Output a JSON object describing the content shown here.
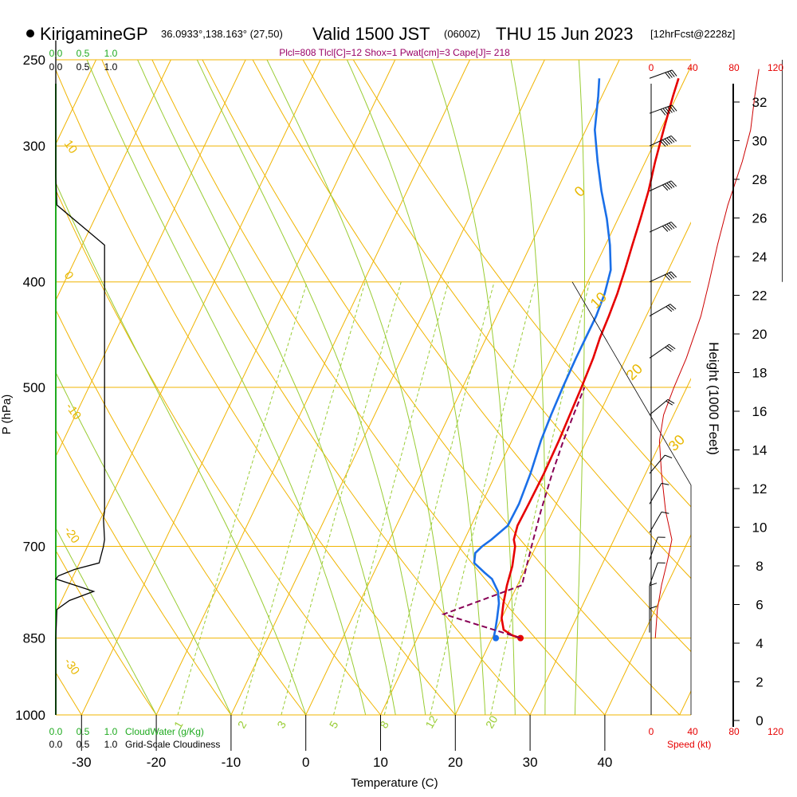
{
  "header": {
    "station": "KirigamineGP",
    "coords": "36.0933°,138.163° (27,50)",
    "valid": "Valid 1500 JST",
    "zulu": "(0600Z)",
    "date": "THU 15 Jun 2023",
    "forecast": "[12hrFcst@2228z]"
  },
  "indices": "Plcl=808 Tlcl[C]=12 Shox=1 Pwat[cm]=3 Cape[J]= 218",
  "colors": {
    "temperature": "#e60000",
    "dewpoint": "#1a6fe8",
    "parcel": "#880055",
    "isobar": "#f0b400",
    "dry_adiabat": "#f0b400",
    "isotherm": "#f0b400",
    "moist_adiabat": "#99cc33",
    "mixing_ratio": "#99cc33",
    "cloud_water": "#1faa1f",
    "cloudiness": "#000000",
    "wind_speed": "#cc0000"
  },
  "chart_data": {
    "type": "line",
    "subtype": "skew-T log-P sounding",
    "xlabel": "Temperature (C)",
    "ylabel": "P (hPa)",
    "right_label": "Height (1000 Feet)",
    "x_ticks": [
      "-30",
      "-20",
      "-10",
      "0",
      "10",
      "20",
      "30",
      "40"
    ],
    "x_tick_values": [
      -30,
      -20,
      -10,
      0,
      10,
      20,
      30,
      40
    ],
    "p_ticks": [
      "250",
      "300",
      "400",
      "500",
      "700",
      "850",
      "1000"
    ],
    "p_tick_values": [
      250,
      300,
      400,
      500,
      700,
      850,
      1000
    ],
    "height_ticks": [
      "0",
      "2",
      "4",
      "6",
      "8",
      "10",
      "12",
      "14",
      "16",
      "18",
      "20",
      "22",
      "24",
      "26",
      "28",
      "30",
      "32"
    ],
    "height_tick_values": [
      0,
      2,
      4,
      6,
      8,
      10,
      12,
      14,
      16,
      18,
      20,
      22,
      24,
      26,
      28,
      30,
      32
    ],
    "cloud_scale_labels": [
      "0.0",
      "0.5",
      "1.0"
    ],
    "cloud_water_label": "CloudWater (g/Kg)",
    "cloudiness_label": "Grid-Scale Cloudiness",
    "speed_ticks": [
      "0",
      "40",
      "80",
      "120"
    ],
    "speed_tick_values": [
      0,
      40,
      80,
      120
    ],
    "speed_label": "Speed (kt)",
    "dry_adiabat_labels": [
      "10",
      "0",
      "-10",
      "-20",
      "-30"
    ],
    "isotherm_labels": [
      "0",
      "10",
      "20",
      "30"
    ],
    "mixing_ratio_labels": [
      "1",
      "2",
      "3",
      "5",
      "8",
      "12",
      "20"
    ],
    "mixing_ratio_values": [
      1,
      2,
      3,
      5,
      8,
      12,
      20
    ],
    "series": [
      {
        "name": "Temperature",
        "points": [
          [
            850,
            23.8
          ],
          [
            845,
            22.5
          ],
          [
            835,
            21.0
          ],
          [
            815,
            20.0
          ],
          [
            790,
            19.3
          ],
          [
            760,
            18.6
          ],
          [
            730,
            18.1
          ],
          [
            700,
            17.2
          ],
          [
            690,
            16.6
          ],
          [
            670,
            16.2
          ],
          [
            640,
            16.3
          ],
          [
            600,
            16.4
          ],
          [
            560,
            16.3
          ],
          [
            530,
            16.1
          ],
          [
            500,
            15.9
          ],
          [
            470,
            15.6
          ],
          [
            450,
            15.2
          ],
          [
            430,
            15.0
          ],
          [
            410,
            14.7
          ],
          [
            390,
            14.2
          ],
          [
            370,
            13.6
          ],
          [
            350,
            13.0
          ],
          [
            330,
            12.3
          ],
          [
            310,
            11.3
          ],
          [
            290,
            10.4
          ],
          [
            270,
            9.5
          ],
          [
            260,
            9.1
          ]
        ]
      },
      {
        "name": "Dewpoint",
        "points": [
          [
            850,
            20.5
          ],
          [
            845,
            20.1
          ],
          [
            835,
            19.9
          ],
          [
            815,
            19.4
          ],
          [
            790,
            18.7
          ],
          [
            770,
            17.8
          ],
          [
            750,
            16.2
          ],
          [
            740,
            14.8
          ],
          [
            725,
            12.8
          ],
          [
            710,
            12.3
          ],
          [
            700,
            12.8
          ],
          [
            690,
            13.6
          ],
          [
            670,
            14.9
          ],
          [
            640,
            15.0
          ],
          [
            600,
            14.6
          ],
          [
            560,
            13.9
          ],
          [
            530,
            13.6
          ],
          [
            500,
            13.4
          ],
          [
            470,
            13.3
          ],
          [
            450,
            13.3
          ],
          [
            430,
            13.3
          ],
          [
            410,
            13.0
          ],
          [
            390,
            12.3
          ],
          [
            370,
            10.6
          ],
          [
            350,
            8.5
          ],
          [
            330,
            6.0
          ],
          [
            310,
            3.6
          ],
          [
            290,
            1.2
          ],
          [
            270,
            -0.5
          ],
          [
            260,
            -1.5
          ]
        ]
      },
      {
        "name": "Parcel",
        "points": [
          [
            850,
            23.8
          ],
          [
            808,
            12.0
          ],
          [
            760,
            20.6
          ],
          [
            700,
            19.4
          ],
          [
            650,
            18.4
          ],
          [
            600,
            17.5
          ],
          [
            560,
            16.9
          ],
          [
            530,
            16.6
          ],
          [
            500,
            16.3
          ]
        ]
      }
    ],
    "cloudiness_profile": [
      [
        240,
        0.0
      ],
      [
        320,
        0.0
      ],
      [
        340,
        0.02
      ],
      [
        370,
        0.9
      ],
      [
        650,
        0.9
      ],
      [
        660,
        0.88
      ],
      [
        690,
        0.9
      ],
      [
        700,
        0.88
      ],
      [
        725,
        0.8
      ],
      [
        735,
        0.35
      ],
      [
        745,
        0.05
      ],
      [
        750,
        0.0
      ],
      [
        770,
        0.7
      ],
      [
        785,
        0.25
      ],
      [
        800,
        0.02
      ],
      [
        850,
        0.0
      ],
      [
        1000,
        0.0
      ]
    ],
    "wind_speed_profile": [
      [
        850,
        4
      ],
      [
        800,
        6
      ],
      [
        760,
        10
      ],
      [
        720,
        16
      ],
      [
        690,
        20
      ],
      [
        650,
        14
      ],
      [
        600,
        10
      ],
      [
        560,
        8
      ],
      [
        530,
        12
      ],
      [
        500,
        22
      ],
      [
        470,
        34
      ],
      [
        430,
        48
      ],
      [
        400,
        56
      ],
      [
        370,
        64
      ],
      [
        340,
        74
      ],
      [
        310,
        88
      ],
      [
        290,
        96
      ],
      [
        270,
        100
      ],
      [
        255,
        104
      ]
    ],
    "wind_barbs": [
      {
        "p": 260,
        "speed": 40,
        "dir": 250
      },
      {
        "p": 280,
        "speed": 55,
        "dir": 250
      },
      {
        "p": 300,
        "speed": 55,
        "dir": 245
      },
      {
        "p": 330,
        "speed": 50,
        "dir": 245
      },
      {
        "p": 360,
        "speed": 45,
        "dir": 245
      },
      {
        "p": 400,
        "speed": 35,
        "dir": 245
      },
      {
        "p": 430,
        "speed": 25,
        "dir": 240
      },
      {
        "p": 470,
        "speed": 25,
        "dir": 235
      },
      {
        "p": 530,
        "speed": 15,
        "dir": 230
      },
      {
        "p": 600,
        "speed": 10,
        "dir": 220
      },
      {
        "p": 640,
        "speed": 10,
        "dir": 210
      },
      {
        "p": 680,
        "speed": 10,
        "dir": 210
      },
      {
        "p": 720,
        "speed": 10,
        "dir": 200
      },
      {
        "p": 760,
        "speed": 10,
        "dir": 200
      },
      {
        "p": 800,
        "speed": 5,
        "dir": 180
      },
      {
        "p": 840,
        "speed": 5,
        "dir": 180
      }
    ]
  }
}
